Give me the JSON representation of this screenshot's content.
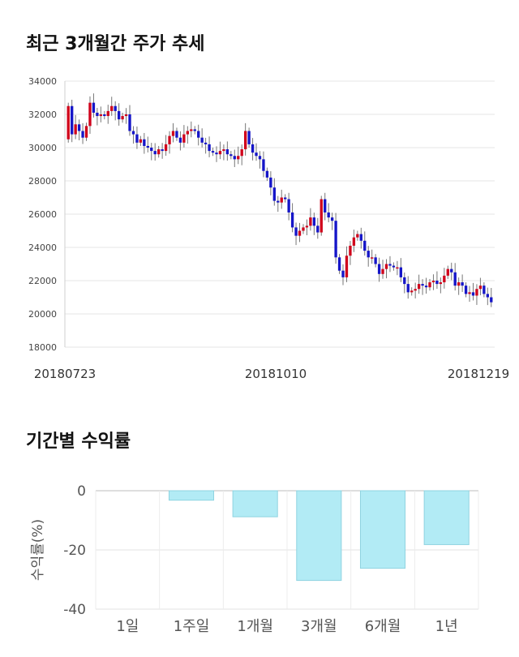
{
  "section1": {
    "title": "최근 3개월간 주가 추세"
  },
  "section2": {
    "title": "기간별 수익률"
  },
  "chart_data": [
    {
      "type": "candlestick",
      "ylim": [
        18000,
        34000
      ],
      "yticks": [
        "34000",
        "32000",
        "30000",
        "28000",
        "26000",
        "24000",
        "22000",
        "20000",
        "18000"
      ],
      "x_tick_labels": [
        "20180723",
        "20181010",
        "20181219"
      ],
      "colors": {
        "up": "#d0021b",
        "down": "#1515c8",
        "wick": "#777777"
      },
      "close_series": [
        32500,
        30800,
        31400,
        31000,
        30600,
        31300,
        32700,
        32100,
        31900,
        32000,
        31900,
        32200,
        32500,
        32200,
        31700,
        31900,
        32000,
        31000,
        30800,
        30300,
        30500,
        30100,
        30000,
        29800,
        29600,
        29900,
        29800,
        30200,
        30700,
        31000,
        30600,
        30300,
        30800,
        31000,
        31100,
        31000,
        30600,
        30300,
        30200,
        29800,
        29700,
        29600,
        29800,
        29900,
        29600,
        29500,
        29300,
        29500,
        29900,
        31000,
        30200,
        29700,
        29500,
        29300,
        28600,
        28200,
        27600,
        26800,
        26700,
        27000,
        26900,
        26100,
        25200,
        24700,
        25000,
        25200,
        25300,
        25800,
        25300,
        24900,
        26900,
        26100,
        25800,
        25600,
        23400,
        22600,
        22200,
        23500,
        24100,
        24600,
        24800,
        24400,
        23800,
        23400,
        23400,
        23000,
        22400,
        22700,
        23000,
        22900,
        22800,
        22800,
        22200,
        21800,
        21300,
        21400,
        21500,
        21800,
        21700,
        21600,
        21900,
        22000,
        21800,
        21900,
        22300,
        22700,
        22500,
        21700,
        21900,
        21700,
        21200,
        21300,
        21100,
        21500,
        21700,
        21200,
        21000,
        20700
      ]
    },
    {
      "type": "bar",
      "ylabel": "수익률(%)",
      "ylim": [
        -40,
        0
      ],
      "yticks": [
        "0",
        "-20",
        "-40"
      ],
      "categories": [
        "1일",
        "1주일",
        "1개월",
        "3개월",
        "6개월",
        "1년"
      ],
      "values": [
        0,
        -3.2,
        -8.8,
        -30.3,
        -26.2,
        -18.2
      ],
      "colors": {
        "fill": "#b2ebf5",
        "stroke": "#8fd3e0"
      }
    }
  ]
}
